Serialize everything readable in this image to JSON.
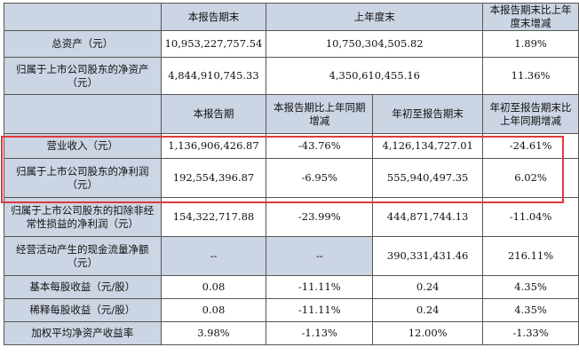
{
  "header1": {
    "col1": "本报告期末",
    "col2": "上年度末",
    "col3": "本报告期末比上年度末增减"
  },
  "rows1": [
    {
      "label": "总资产（元）",
      "v1": "10,953,227,757.54",
      "v2": "10,750,304,505.82",
      "v3": "1.89%"
    },
    {
      "label": "归属于上市公司股东的净资产（元）",
      "v1": "4,844,910,745.33",
      "v2": "4,350,610,455.16",
      "v3": "11.36%"
    }
  ],
  "header2": {
    "col1": "本报告期",
    "col2": "本报告期比上年同期增减",
    "col3": "年初至报告期末",
    "col4": "年初至报告期末比上年同期增减"
  },
  "rows2": [
    {
      "label": "营业收入（元）",
      "v1": "1,136,906,426.87",
      "v2": "-43.76%",
      "v3": "4,126,134,727.01",
      "v4": "-24.61%"
    },
    {
      "label": "归属于上市公司股东的净利润（元）",
      "v1": "192,554,396.87",
      "v2": "-6.95%",
      "v3": "555,940,497.35",
      "v4": "6.02%"
    },
    {
      "label": "归属于上市公司股东的扣除非经常性损益的净利润（元）",
      "v1": "154,322,717.88",
      "v2": "-23.99%",
      "v3": "444,871,744.13",
      "v4": "-11.04%"
    },
    {
      "label": "经营活动产生的现金流量净额（元）",
      "v1": "--",
      "v2": "--",
      "v3": "390,331,431.46",
      "v4": "216.11%"
    },
    {
      "label": "基本每股收益（元/股）",
      "v1": "0.08",
      "v2": "-11.11%",
      "v3": "0.24",
      "v4": "4.35%"
    },
    {
      "label": "稀释每股收益（元/股）",
      "v1": "0.08",
      "v2": "-11.11%",
      "v3": "0.24",
      "v4": "4.35%"
    },
    {
      "label": "加权平均净资产收益率",
      "v1": "3.98%",
      "v2": "-1.13%",
      "v3": "12.00%",
      "v4": "-1.33%"
    }
  ],
  "highlight": {
    "color": "#e0393e"
  },
  "colors": {
    "header_bg": "#ccd5e4",
    "border": "#555555"
  }
}
